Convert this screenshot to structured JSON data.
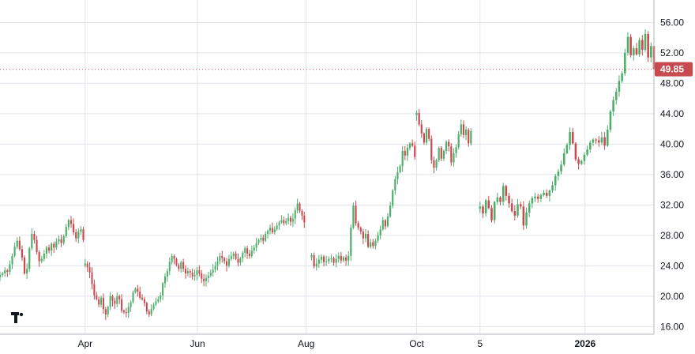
{
  "chart_data": {
    "type": "candlestick",
    "title": "",
    "x_ticks": [
      {
        "label": "Apr",
        "date": "2025-04-01"
      },
      {
        "label": "Jun",
        "date": "2025-06-02"
      },
      {
        "label": "Aug",
        "date": "2025-08-01"
      },
      {
        "label": "Oct",
        "date": "2025-10-01"
      },
      {
        "label": "5",
        "date": "2025-11-05"
      },
      {
        "label": "2026",
        "date": "2026-01-02"
      }
    ],
    "y_ticks": [
      "16.00",
      "20.00",
      "24.00",
      "28.00",
      "32.00",
      "36.00",
      "40.00",
      "44.00",
      "48.00",
      "52.00",
      "56.00"
    ],
    "ylim": [
      15.0,
      57.5
    ],
    "xlim": [
      "2025-02-13",
      "2026-02-09"
    ],
    "grid": true,
    "axis_side": "right",
    "last_price": 49.85,
    "last_price_label": "49.85",
    "up_color": "#4cae69",
    "down_color": "#c94a4e",
    "price_line_color": "#c94a4e",
    "series": [
      {
        "segment": "Feb–Mar 2025",
        "start": "2025-02-13",
        "end": "2025-03-31",
        "closes": [
          22.8,
          23.0,
          23.4,
          23.2,
          24.2,
          25.3,
          26.5,
          27.3,
          26.2,
          25.1,
          23.0,
          23.6,
          26.3,
          28.2,
          27.4,
          25.8,
          24.6,
          24.9,
          25.6,
          26.4,
          26.0,
          26.9,
          26.4,
          27.2,
          27.5,
          27.0,
          27.9,
          29.1,
          30.0,
          29.5,
          28.4,
          27.6,
          28.5,
          28.8,
          27.4
        ]
      },
      {
        "segment": "Apr–Jul 2025",
        "start": "2025-04-01",
        "end": "2025-07-31",
        "closes": [
          24.3,
          23.8,
          23.1,
          21.6,
          20.1,
          19.6,
          18.9,
          19.8,
          18.3,
          17.6,
          18.6,
          20.0,
          19.4,
          19.0,
          20.0,
          19.6,
          18.1,
          17.9,
          17.8,
          18.6,
          19.2,
          20.5,
          21.0,
          20.6,
          19.8,
          19.6,
          19.1,
          18.0,
          17.6,
          18.3,
          18.9,
          19.3,
          19.6,
          20.1,
          21.7,
          22.6,
          23.3,
          24.5,
          25.3,
          24.9,
          24.1,
          23.6,
          24.5,
          23.6,
          23.0,
          23.3,
          23.1,
          22.6,
          22.8,
          23.4,
          23.0,
          22.3,
          22.0,
          22.4,
          22.7,
          23.1,
          23.5,
          24.0,
          24.6,
          25.3,
          25.0,
          24.6,
          24.0,
          24.9,
          25.3,
          25.6,
          24.9,
          24.4,
          25.0,
          25.7,
          26.3,
          25.6,
          25.3,
          26.0,
          26.4,
          27.0,
          27.4,
          27.7,
          27.3,
          28.2,
          28.6,
          29.0,
          28.4,
          28.8,
          29.3,
          29.7,
          30.0,
          29.6,
          29.9,
          30.3,
          29.8,
          30.2,
          31.3,
          32.2,
          31.2,
          30.6,
          29.7
        ]
      },
      {
        "segment": "Aug–Sep 2025",
        "start": "2025-08-04",
        "end": "2025-09-30",
        "closes": [
          25.4,
          23.9,
          24.3,
          24.8,
          25.2,
          24.5,
          24.6,
          24.9,
          25.0,
          24.4,
          24.9,
          25.3,
          24.7,
          25.1,
          24.7,
          25.3,
          29.0,
          31.9,
          29.6,
          29.0,
          28.5,
          27.6,
          28.2,
          26.5,
          27.1,
          26.6,
          27.3,
          28.0,
          28.8,
          30.0,
          29.2,
          30.5,
          31.9,
          33.9,
          35.4,
          36.3,
          37.1,
          39.1,
          38.5,
          39.5,
          40.1,
          39.8,
          38.3
        ]
      },
      {
        "segment": "Oct 2025",
        "start": "2025-10-01",
        "end": "2025-10-31",
        "closes": [
          44.1,
          42.6,
          41.4,
          40.2,
          42.0,
          40.7,
          37.9,
          36.9,
          37.9,
          39.5,
          38.1,
          39.1,
          40.3,
          39.7,
          37.6,
          38.8,
          39.6,
          41.3,
          42.6,
          41.2,
          41.9,
          40.1,
          41.7
        ]
      },
      {
        "segment": "Nov 2025–Feb 2026",
        "start": "2025-11-05",
        "end": "2026-02-09",
        "closes": [
          31.8,
          30.9,
          32.6,
          31.6,
          30.0,
          32.4,
          33.0,
          32.4,
          34.5,
          33.2,
          32.2,
          31.2,
          30.6,
          32.1,
          31.8,
          29.3,
          31.0,
          32.2,
          32.9,
          33.1,
          32.8,
          33.3,
          33.6,
          33.2,
          33.9,
          34.6,
          35.8,
          36.4,
          37.3,
          38.8,
          39.9,
          41.6,
          40.1,
          38.0,
          37.4,
          37.8,
          38.6,
          39.3,
          40.2,
          40.6,
          40.5,
          40.2,
          40.9,
          39.8,
          41.9,
          44.3,
          45.8,
          46.9,
          48.3,
          49.3,
          52.0,
          54.1,
          51.7,
          52.6,
          51.8,
          53.7,
          52.4,
          54.5,
          51.4,
          52.9,
          49.85
        ]
      }
    ]
  }
}
